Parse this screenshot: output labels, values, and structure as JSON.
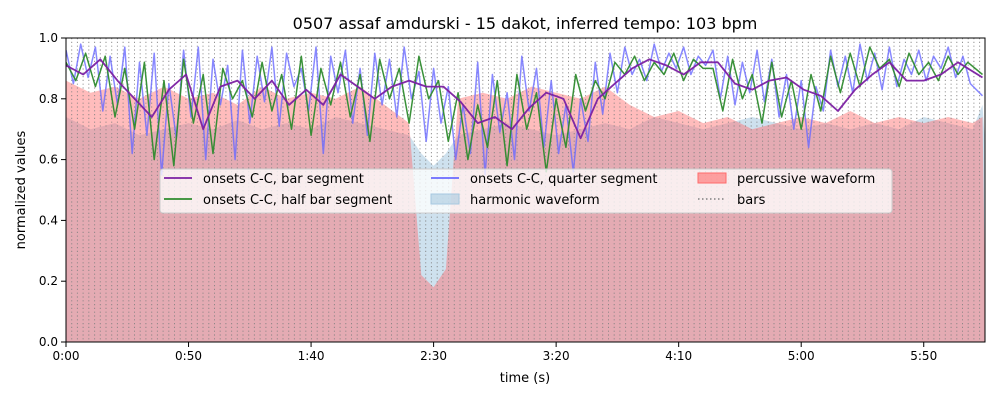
{
  "chart_data": {
    "type": "line",
    "title": "0507 assaf amdurski - 15 dakot, inferred tempo: 103 bpm",
    "xlabel": "time (s)",
    "ylabel": "normalized values",
    "xlim": [
      0,
      375
    ],
    "ylim": [
      0.0,
      1.0
    ],
    "grid": false,
    "legend_position": "center",
    "x_ticks": [
      {
        "value": 0,
        "label": "0:00"
      },
      {
        "value": 50,
        "label": "0:50"
      },
      {
        "value": 100,
        "label": "1:40"
      },
      {
        "value": 150,
        "label": "2:30"
      },
      {
        "value": 200,
        "label": "3:20"
      },
      {
        "value": 250,
        "label": "4:10"
      },
      {
        "value": 300,
        "label": "5:00"
      },
      {
        "value": 350,
        "label": "5:50"
      }
    ],
    "y_ticks": [
      {
        "value": 0.0,
        "label": "0.0"
      },
      {
        "value": 0.2,
        "label": "0.2"
      },
      {
        "value": 0.4,
        "label": "0.4"
      },
      {
        "value": 0.6,
        "label": "0.6"
      },
      {
        "value": 0.8,
        "label": "0.8"
      },
      {
        "value": 1.0,
        "label": "1.0"
      }
    ],
    "bars": {
      "name": "bars",
      "start": 0.0,
      "period": 2.33,
      "end": 374.0,
      "color": "#808080"
    },
    "series": [
      {
        "name": "onsets C-C, bar segment",
        "color": "#7b1fa2",
        "x": [
          0,
          7,
          14,
          21,
          28,
          35,
          42,
          49,
          56,
          63,
          70,
          77,
          84,
          91,
          98,
          105,
          112,
          119,
          126,
          133,
          140,
          147,
          154,
          161,
          168,
          175,
          182,
          189,
          196,
          203,
          210,
          217,
          224,
          231,
          238,
          245,
          252,
          259,
          266,
          273,
          280,
          287,
          294,
          301,
          308,
          315,
          322,
          329,
          336,
          343,
          350,
          357,
          364,
          374
        ],
        "values": [
          0.91,
          0.88,
          0.93,
          0.86,
          0.8,
          0.74,
          0.83,
          0.88,
          0.7,
          0.84,
          0.86,
          0.8,
          0.86,
          0.78,
          0.83,
          0.78,
          0.88,
          0.84,
          0.8,
          0.84,
          0.86,
          0.84,
          0.84,
          0.79,
          0.72,
          0.74,
          0.7,
          0.77,
          0.82,
          0.8,
          0.67,
          0.8,
          0.85,
          0.9,
          0.93,
          0.91,
          0.88,
          0.92,
          0.92,
          0.85,
          0.83,
          0.86,
          0.87,
          0.83,
          0.81,
          0.76,
          0.83,
          0.88,
          0.92,
          0.86,
          0.86,
          0.88,
          0.92,
          0.87
        ]
      },
      {
        "name": "onsets C-C, quarter segment",
        "color": "#6a6aff",
        "x": [
          0,
          3,
          6,
          9,
          12,
          15,
          18,
          21,
          24,
          27,
          30,
          33,
          36,
          39,
          42,
          45,
          48,
          51,
          54,
          57,
          60,
          63,
          66,
          69,
          72,
          75,
          78,
          81,
          84,
          87,
          90,
          93,
          96,
          99,
          102,
          105,
          108,
          111,
          114,
          117,
          120,
          123,
          126,
          129,
          132,
          135,
          138,
          141,
          144,
          147,
          150,
          153,
          156,
          159,
          162,
          165,
          168,
          171,
          174,
          177,
          180,
          183,
          186,
          189,
          192,
          195,
          198,
          201,
          204,
          207,
          210,
          213,
          216,
          219,
          222,
          225,
          228,
          231,
          234,
          237,
          240,
          243,
          246,
          249,
          252,
          255,
          258,
          261,
          264,
          267,
          270,
          273,
          276,
          279,
          282,
          285,
          288,
          291,
          294,
          297,
          300,
          303,
          306,
          309,
          312,
          315,
          318,
          321,
          324,
          327,
          330,
          333,
          336,
          339,
          342,
          345,
          348,
          351,
          354,
          357,
          360,
          363,
          366,
          369,
          374
        ],
        "values": [
          0.96,
          0.85,
          0.98,
          0.87,
          0.97,
          0.76,
          0.94,
          0.78,
          0.97,
          0.62,
          0.92,
          0.68,
          0.95,
          0.55,
          0.85,
          0.67,
          0.96,
          0.74,
          0.97,
          0.6,
          0.93,
          0.78,
          0.91,
          0.6,
          0.96,
          0.72,
          0.94,
          0.79,
          0.97,
          0.71,
          0.95,
          0.84,
          0.9,
          0.76,
          0.97,
          0.62,
          0.94,
          0.82,
          0.96,
          0.72,
          0.9,
          0.68,
          0.95,
          0.78,
          0.93,
          0.74,
          0.97,
          0.8,
          0.89,
          0.66,
          0.9,
          0.72,
          0.84,
          0.6,
          0.78,
          0.62,
          0.92,
          0.55,
          0.88,
          0.69,
          0.82,
          0.6,
          0.94,
          0.76,
          0.9,
          0.64,
          0.86,
          0.62,
          0.78,
          0.56,
          0.8,
          0.66,
          0.92,
          0.75,
          0.95,
          0.82,
          0.97,
          0.88,
          0.93,
          0.86,
          0.98,
          0.89,
          0.95,
          0.9,
          0.97,
          0.88,
          0.94,
          0.91,
          0.96,
          0.8,
          0.94,
          0.78,
          0.92,
          0.82,
          0.96,
          0.79,
          0.93,
          0.74,
          0.88,
          0.7,
          0.86,
          0.64,
          0.84,
          0.76,
          0.96,
          0.84,
          0.94,
          0.82,
          0.98,
          0.86,
          0.95,
          0.83,
          0.97,
          0.84,
          0.93,
          0.88,
          0.96,
          0.86,
          0.94,
          0.9,
          0.97,
          0.87,
          0.94,
          0.85,
          0.81
        ]
      },
      {
        "name": "onsets C-C, half bar segment",
        "color": "#2e8b2e",
        "x": [
          0,
          4,
          8,
          12,
          16,
          20,
          24,
          28,
          32,
          36,
          40,
          44,
          48,
          52,
          56,
          60,
          64,
          68,
          72,
          76,
          80,
          84,
          88,
          92,
          96,
          100,
          104,
          108,
          112,
          116,
          120,
          124,
          128,
          132,
          136,
          140,
          144,
          148,
          152,
          156,
          160,
          164,
          168,
          172,
          176,
          180,
          184,
          188,
          192,
          196,
          200,
          204,
          208,
          212,
          216,
          220,
          224,
          228,
          232,
          236,
          240,
          244,
          248,
          252,
          256,
          260,
          264,
          268,
          272,
          276,
          280,
          284,
          288,
          292,
          296,
          300,
          304,
          308,
          312,
          316,
          320,
          324,
          328,
          332,
          336,
          340,
          344,
          348,
          352,
          356,
          360,
          364,
          368,
          374
        ],
        "values": [
          0.92,
          0.86,
          0.95,
          0.84,
          0.94,
          0.74,
          0.9,
          0.7,
          0.92,
          0.6,
          0.86,
          0.58,
          0.93,
          0.72,
          0.88,
          0.62,
          0.9,
          0.8,
          0.86,
          0.74,
          0.92,
          0.76,
          0.88,
          0.7,
          0.94,
          0.68,
          0.9,
          0.78,
          0.92,
          0.74,
          0.88,
          0.66,
          0.93,
          0.8,
          0.9,
          0.72,
          0.94,
          0.8,
          0.86,
          0.66,
          0.82,
          0.6,
          0.78,
          0.64,
          0.86,
          0.58,
          0.88,
          0.7,
          0.82,
          0.56,
          0.8,
          0.64,
          0.88,
          0.76,
          0.86,
          0.8,
          0.92,
          0.88,
          0.94,
          0.86,
          0.92,
          0.88,
          0.95,
          0.86,
          0.93,
          0.9,
          0.9,
          0.76,
          0.93,
          0.8,
          0.88,
          0.72,
          0.92,
          0.74,
          0.86,
          0.7,
          0.88,
          0.76,
          0.94,
          0.82,
          0.95,
          0.84,
          0.97,
          0.9,
          0.93,
          0.84,
          0.95,
          0.88,
          0.92,
          0.86,
          0.94,
          0.88,
          0.92,
          0.88
        ]
      }
    ],
    "areas": [
      {
        "name": "harmonic waveform",
        "color": "#a6c8e0",
        "x": [
          0,
          10,
          20,
          30,
          40,
          50,
          60,
          70,
          80,
          90,
          100,
          110,
          120,
          130,
          140,
          145,
          150,
          155,
          160,
          170,
          180,
          190,
          200,
          210,
          220,
          230,
          240,
          250,
          260,
          270,
          280,
          290,
          300,
          310,
          320,
          330,
          340,
          350,
          360,
          370,
          374,
          375,
          380,
          385,
          390,
          395,
          400
        ],
        "values": [
          0.74,
          0.7,
          0.72,
          0.68,
          0.7,
          0.72,
          0.7,
          0.73,
          0.7,
          0.72,
          0.7,
          0.74,
          0.72,
          0.7,
          0.68,
          0.62,
          0.58,
          0.62,
          0.68,
          0.7,
          0.72,
          0.7,
          0.68,
          0.7,
          0.72,
          0.7,
          0.74,
          0.72,
          0.7,
          0.72,
          0.74,
          0.72,
          0.7,
          0.72,
          0.7,
          0.72,
          0.7,
          0.74,
          0.72,
          0.7,
          0.78,
          0.66,
          0.84,
          0.88,
          0.8,
          0.76,
          0.7
        ]
      },
      {
        "name": "percussive waveform",
        "color": "#ff6b6b",
        "x": [
          0,
          10,
          20,
          30,
          40,
          50,
          60,
          70,
          80,
          90,
          100,
          110,
          120,
          130,
          140,
          145,
          150,
          155,
          160,
          170,
          180,
          190,
          200,
          210,
          220,
          230,
          240,
          250,
          260,
          270,
          280,
          290,
          300,
          310,
          320,
          330,
          340,
          350,
          360,
          370,
          374,
          375,
          380,
          385,
          390,
          395,
          400
        ],
        "values": [
          0.86,
          0.82,
          0.84,
          0.8,
          0.84,
          0.8,
          0.82,
          0.78,
          0.84,
          0.8,
          0.82,
          0.8,
          0.84,
          0.78,
          0.72,
          0.22,
          0.18,
          0.24,
          0.8,
          0.82,
          0.8,
          0.84,
          0.82,
          0.8,
          0.84,
          0.78,
          0.74,
          0.76,
          0.72,
          0.74,
          0.7,
          0.72,
          0.74,
          0.72,
          0.76,
          0.72,
          0.74,
          0.72,
          0.74,
          0.72,
          0.74,
          0.2,
          0.18,
          0.16,
          0.12,
          0.08,
          0.06
        ]
      }
    ],
    "legend": [
      {
        "key": "bar",
        "label": "onsets C-C, bar segment",
        "style": "line",
        "color": "#7b1fa2"
      },
      {
        "key": "half",
        "label": "onsets C-C, half bar segment",
        "style": "line",
        "color": "#2e8b2e"
      },
      {
        "key": "quarter",
        "label": "onsets C-C, quarter segment",
        "style": "line",
        "color": "#6a6aff"
      },
      {
        "key": "harmonic",
        "label": "harmonic waveform",
        "style": "patch",
        "color": "#a6c8e0"
      },
      {
        "key": "percussive",
        "label": "percussive waveform",
        "style": "patch",
        "color": "#ff6b6b"
      },
      {
        "key": "bars",
        "label": "bars",
        "style": "dotted",
        "color": "#808080"
      }
    ]
  }
}
